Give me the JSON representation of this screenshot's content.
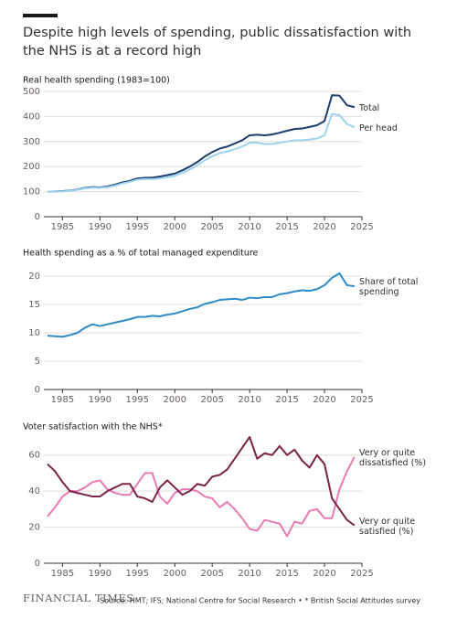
{
  "title": "Despite high levels of spending, public dissatisfaction with the NHS is at a record high",
  "source": "Source: HMT; IFS; National Centre for Social Research • * British Social Attitudes survey",
  "brand": "FINANCIAL TIMES",
  "chart_data": [
    {
      "type": "line",
      "title": "Real health spending (1983=100)",
      "x": [
        1983,
        1984,
        1985,
        1986,
        1987,
        1988,
        1989,
        1990,
        1991,
        1992,
        1993,
        1994,
        1995,
        1996,
        1997,
        1998,
        1999,
        2000,
        2001,
        2002,
        2003,
        2004,
        2005,
        2006,
        2007,
        2008,
        2009,
        2010,
        2011,
        2012,
        2013,
        2014,
        2015,
        2016,
        2017,
        2018,
        2019,
        2020,
        2021,
        2022,
        2023,
        2024
      ],
      "xlim": [
        1983,
        2025
      ],
      "xticks": [
        1985,
        1990,
        1995,
        2000,
        2005,
        2010,
        2015,
        2020,
        2025
      ],
      "ylim": [
        0,
        500
      ],
      "yticks": [
        0,
        100,
        200,
        300,
        400,
        500
      ],
      "grid": true,
      "series": [
        {
          "name": "Total",
          "color": "#1b3d6d",
          "values": [
            100,
            101,
            102,
            104,
            108,
            115,
            118,
            117,
            121,
            128,
            137,
            143,
            153,
            155,
            156,
            160,
            166,
            172,
            185,
            200,
            218,
            240,
            258,
            272,
            280,
            292,
            305,
            325,
            327,
            325,
            328,
            335,
            343,
            350,
            352,
            358,
            365,
            382,
            485,
            483,
            445,
            437
          ]
        },
        {
          "name": "Per head",
          "color": "#9dd3ef",
          "values": [
            100,
            101,
            101,
            103,
            107,
            113,
            116,
            115,
            118,
            124,
            133,
            139,
            148,
            150,
            150,
            153,
            158,
            163,
            175,
            188,
            205,
            225,
            241,
            254,
            260,
            270,
            280,
            295,
            295,
            290,
            290,
            295,
            300,
            305,
            305,
            308,
            312,
            325,
            410,
            405,
            370,
            357
          ]
        }
      ]
    },
    {
      "type": "line",
      "title": "Health spending as a % of total managed expenditure",
      "x": [
        1983,
        1984,
        1985,
        1986,
        1987,
        1988,
        1989,
        1990,
        1991,
        1992,
        1993,
        1994,
        1995,
        1996,
        1997,
        1998,
        1999,
        2000,
        2001,
        2002,
        2003,
        2004,
        2005,
        2006,
        2007,
        2008,
        2009,
        2010,
        2011,
        2012,
        2013,
        2014,
        2015,
        2016,
        2017,
        2018,
        2019,
        2020,
        2021,
        2022,
        2023,
        2024
      ],
      "xlim": [
        1983,
        2025
      ],
      "xticks": [
        1985,
        1990,
        1995,
        2000,
        2005,
        2010,
        2015,
        2020,
        2025
      ],
      "ylim": [
        0,
        22
      ],
      "yticks": [
        0,
        5,
        10,
        15,
        20
      ],
      "grid": true,
      "series": [
        {
          "name": "Share of total spending",
          "color": "#2e8bc4",
          "values": [
            9.5,
            9.4,
            9.3,
            9.6,
            10.0,
            10.9,
            11.5,
            11.2,
            11.5,
            11.8,
            12.1,
            12.4,
            12.8,
            12.8,
            13.0,
            12.9,
            13.2,
            13.4,
            13.8,
            14.2,
            14.5,
            15.1,
            15.4,
            15.8,
            15.9,
            16.0,
            15.8,
            16.2,
            16.1,
            16.3,
            16.3,
            16.8,
            17.0,
            17.3,
            17.5,
            17.4,
            17.7,
            18.4,
            19.7,
            20.5,
            18.4,
            18.2
          ]
        }
      ]
    },
    {
      "type": "line",
      "title": "Voter satisfaction with the NHS*",
      "x": [
        1983,
        1984,
        1985,
        1986,
        1987,
        1988,
        1989,
        1990,
        1991,
        1992,
        1993,
        1994,
        1995,
        1996,
        1997,
        1998,
        1999,
        2000,
        2001,
        2002,
        2003,
        2004,
        2005,
        2006,
        2007,
        2008,
        2009,
        2010,
        2011,
        2012,
        2013,
        2014,
        2015,
        2016,
        2017,
        2018,
        2019,
        2020,
        2021,
        2022,
        2023,
        2024
      ],
      "xlim": [
        1983,
        2025
      ],
      "xticks": [
        1985,
        1990,
        1995,
        2000,
        2005,
        2010,
        2015,
        2020,
        2025
      ],
      "ylim": [
        0,
        70
      ],
      "yticks": [
        0,
        20,
        40,
        60
      ],
      "grid": true,
      "series": [
        {
          "name": "Very or quite dissatisfied (%)",
          "color": "#e97bb1",
          "values": [
            26,
            31,
            37,
            40,
            40,
            42,
            45,
            46,
            41,
            39,
            38,
            38,
            44,
            50,
            50,
            37,
            33,
            39,
            41,
            41,
            40,
            37,
            36,
            31,
            34,
            30,
            25,
            19,
            18,
            24,
            23,
            22,
            15,
            23,
            22,
            29,
            30,
            25,
            25,
            41,
            51,
            59
          ]
        },
        {
          "name": "Very or quite satisfied (%)",
          "color": "#7b2347",
          "values": [
            55,
            51,
            45,
            40,
            39,
            38,
            37,
            37,
            40,
            42,
            44,
            44,
            37,
            36,
            34,
            42,
            46,
            42,
            38,
            40,
            44,
            43,
            48,
            49,
            52,
            58,
            64,
            70,
            58,
            61,
            60,
            65,
            60,
            63,
            57,
            53,
            60,
            55,
            36,
            30,
            24,
            21
          ]
        }
      ]
    }
  ]
}
